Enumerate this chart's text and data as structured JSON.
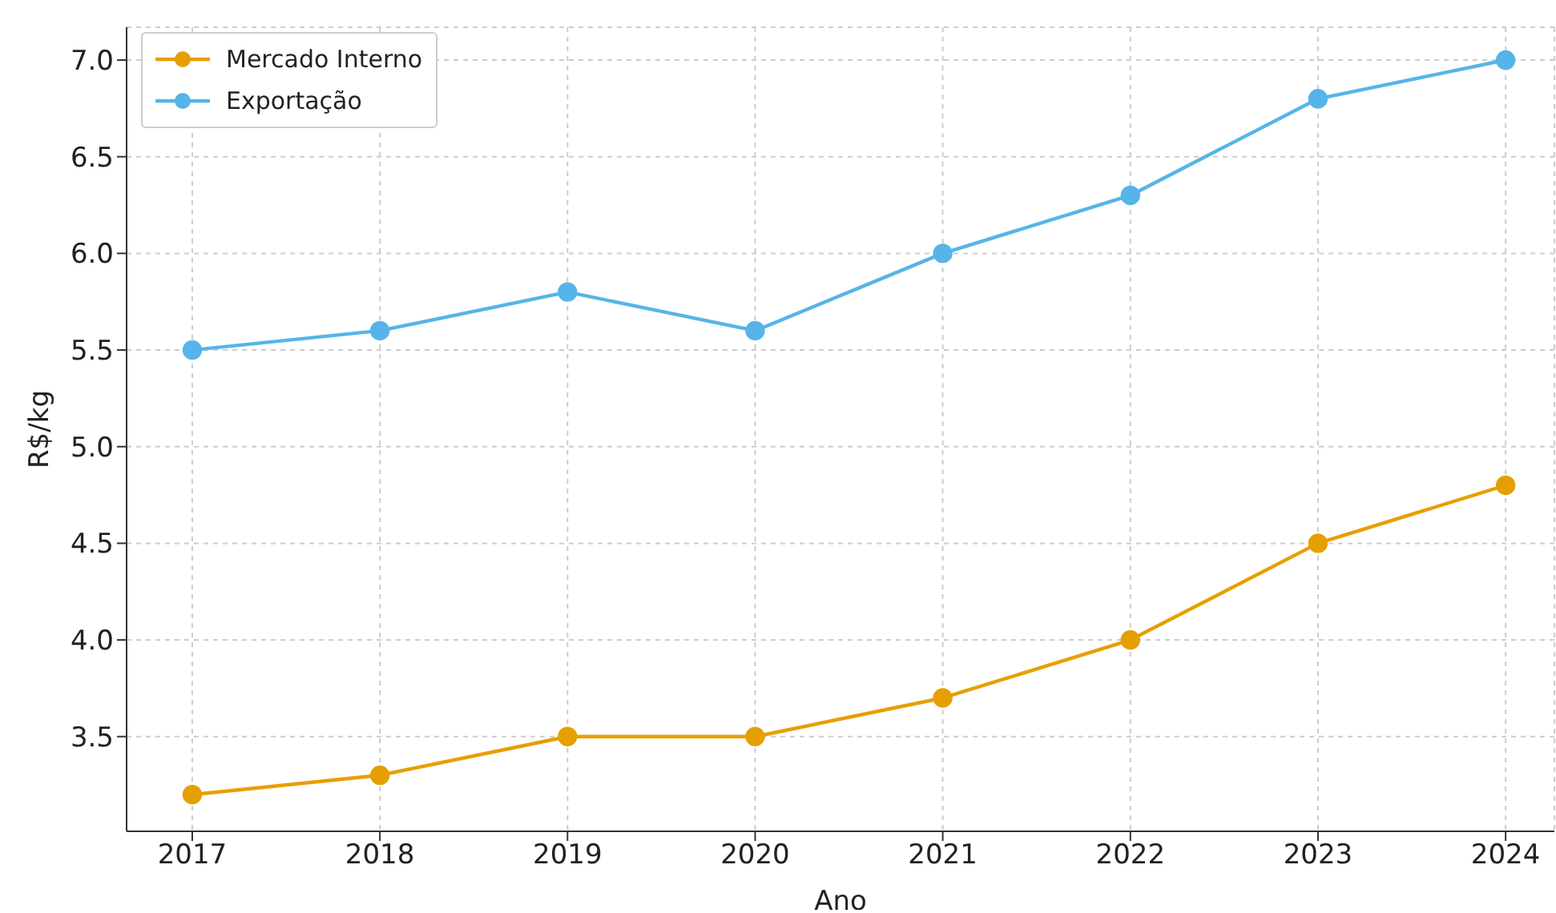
{
  "chart_data": {
    "type": "line",
    "xlabel": "Ano",
    "ylabel": "R$/kg",
    "x": [
      2017,
      2018,
      2019,
      2020,
      2021,
      2022,
      2023,
      2024
    ],
    "series": [
      {
        "name": "Mercado Interno",
        "color": "#e69f00",
        "values": [
          3.2,
          3.3,
          3.5,
          3.5,
          3.7,
          4.0,
          4.5,
          4.8
        ]
      },
      {
        "name": "Exportação",
        "color": "#56b4e9",
        "values": [
          5.5,
          5.6,
          5.8,
          5.6,
          6.0,
          6.3,
          6.8,
          7.0
        ]
      }
    ],
    "xlim": [
      2016.65,
      2024.26
    ],
    "xticks": [
      2017,
      2018,
      2019,
      2020,
      2021,
      2022,
      2023,
      2024
    ],
    "ylim": [
      3.01,
      7.17
    ],
    "yticks": [
      3.5,
      {
        "value": 4,
        "label": "4.0"
      },
      4.5,
      {
        "value": 5,
        "label": "5.0"
      },
      5.5,
      {
        "value": 6,
        "label": "6.0"
      },
      6.5,
      {
        "value": 7,
        "label": "7.0"
      }
    ],
    "grid": true,
    "legend": "top left",
    "marker": "circle",
    "line_style": "solid"
  }
}
